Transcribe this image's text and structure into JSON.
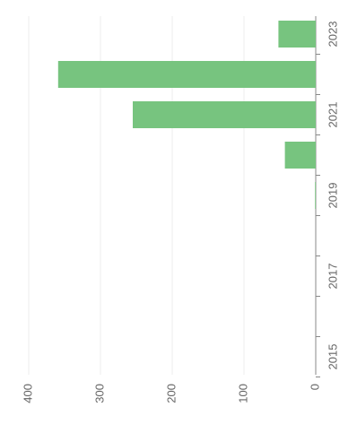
{
  "chart_data": {
    "type": "bar",
    "categories": [
      "2015",
      null,
      "2017",
      null,
      "2019",
      null,
      "2021",
      null,
      "2023"
    ],
    "values": [
      0,
      0,
      0,
      0,
      1,
      43,
      255,
      359,
      52
    ],
    "color": "#77c47f",
    "ylim": [
      0,
      400
    ],
    "yticks": [
      0,
      100,
      200,
      300,
      400
    ],
    "grid": true
  }
}
